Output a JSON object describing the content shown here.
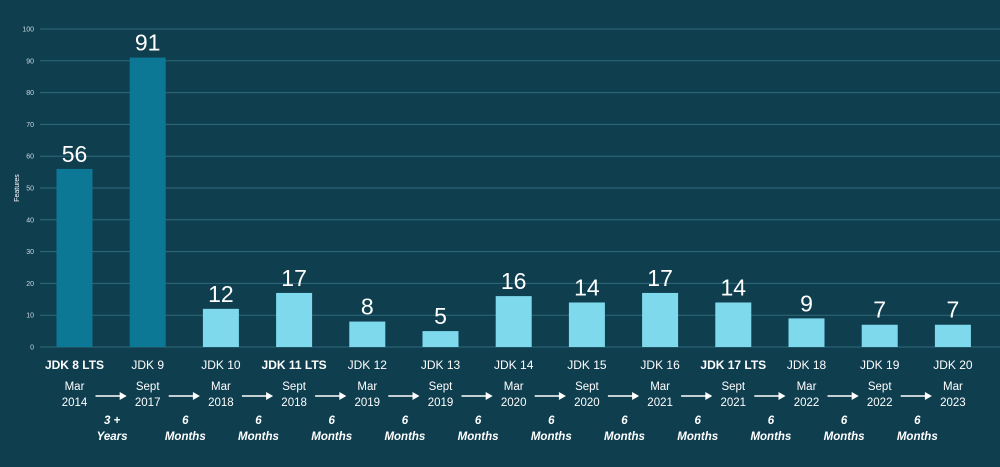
{
  "chart_data": {
    "type": "bar",
    "ylabel": "Features",
    "ylim": [
      0,
      100
    ],
    "yticks": [
      0,
      10,
      20,
      30,
      40,
      50,
      60,
      70,
      80,
      90,
      100
    ],
    "grid": true,
    "categories": [
      "JDK 8 LTS",
      "JDK 9",
      "JDK 10",
      "JDK 11 LTS",
      "JDK 12",
      "JDK 13",
      "JDK 14",
      "JDK 15",
      "JDK 16",
      "JDK 17 LTS",
      "JDK 18",
      "JDK 19",
      "JDK 20"
    ],
    "bold_categories": [
      "JDK 8 LTS",
      "JDK 11 LTS",
      "JDK 17 LTS"
    ],
    "values": [
      56,
      91,
      12,
      17,
      8,
      5,
      16,
      14,
      17,
      14,
      9,
      7,
      7
    ],
    "release_dates": [
      [
        "Mar",
        "2014"
      ],
      [
        "Sept",
        "2017"
      ],
      [
        "Mar",
        "2018"
      ],
      [
        "Sept",
        "2018"
      ],
      [
        "Mar",
        "2019"
      ],
      [
        "Sept",
        "2019"
      ],
      [
        "Mar",
        "2020"
      ],
      [
        "Sept",
        "2020"
      ],
      [
        "Mar",
        "2021"
      ],
      [
        "Sept",
        "2021"
      ],
      [
        "Mar",
        "2022"
      ],
      [
        "Sept",
        "2022"
      ],
      [
        "Mar",
        "2023"
      ]
    ],
    "intervals": [
      [
        "3 +",
        "Years"
      ],
      [
        "6",
        "Months"
      ],
      [
        "6",
        "Months"
      ],
      [
        "6",
        "Months"
      ],
      [
        "6",
        "Months"
      ],
      [
        "6",
        "Months"
      ],
      [
        "6",
        "Months"
      ],
      [
        "6",
        "Months"
      ],
      [
        "6",
        "Months"
      ],
      [
        "6",
        "Months"
      ],
      [
        "6",
        "Months"
      ],
      [
        "6",
        "Months"
      ]
    ],
    "colors": {
      "background": "#0f3e4f",
      "early_bar": "#0c7895",
      "later_bar": "#7fd9ed",
      "grid": "#2f6b7c",
      "arrow": "#ffffff"
    }
  }
}
